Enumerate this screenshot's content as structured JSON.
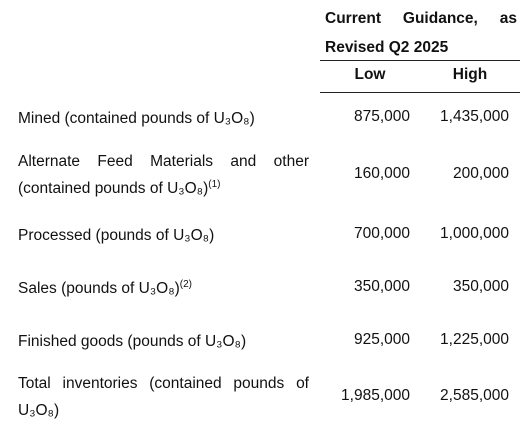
{
  "header": {
    "title": "Current Guidance, as Revised Q2 2025",
    "columns": [
      "Low",
      "High"
    ]
  },
  "table": {
    "rows": [
      {
        "label": "Mined (contained pounds of U₃O₈)",
        "low": "875,000",
        "high": "1,435,000"
      },
      {
        "label": "Alternate Feed Materials and other (contained pounds of U₃O₈)",
        "note": "(1)",
        "low": "160,000",
        "high": "200,000"
      },
      {
        "label": "Processed (pounds of U₃O₈)",
        "low": "700,000",
        "high": "1,000,000"
      },
      {
        "label": "Sales (pounds of U₃O₈)",
        "note": "(2)",
        "low": "350,000",
        "high": "350,000"
      },
      {
        "label": "Finished goods (pounds of U₃O₈)",
        "low": "925,000",
        "high": "1,225,000"
      },
      {
        "label": "Total inventories (contained pounds of U₃O₈)",
        "low": "1,985,000",
        "high": "2,585,000"
      }
    ]
  }
}
